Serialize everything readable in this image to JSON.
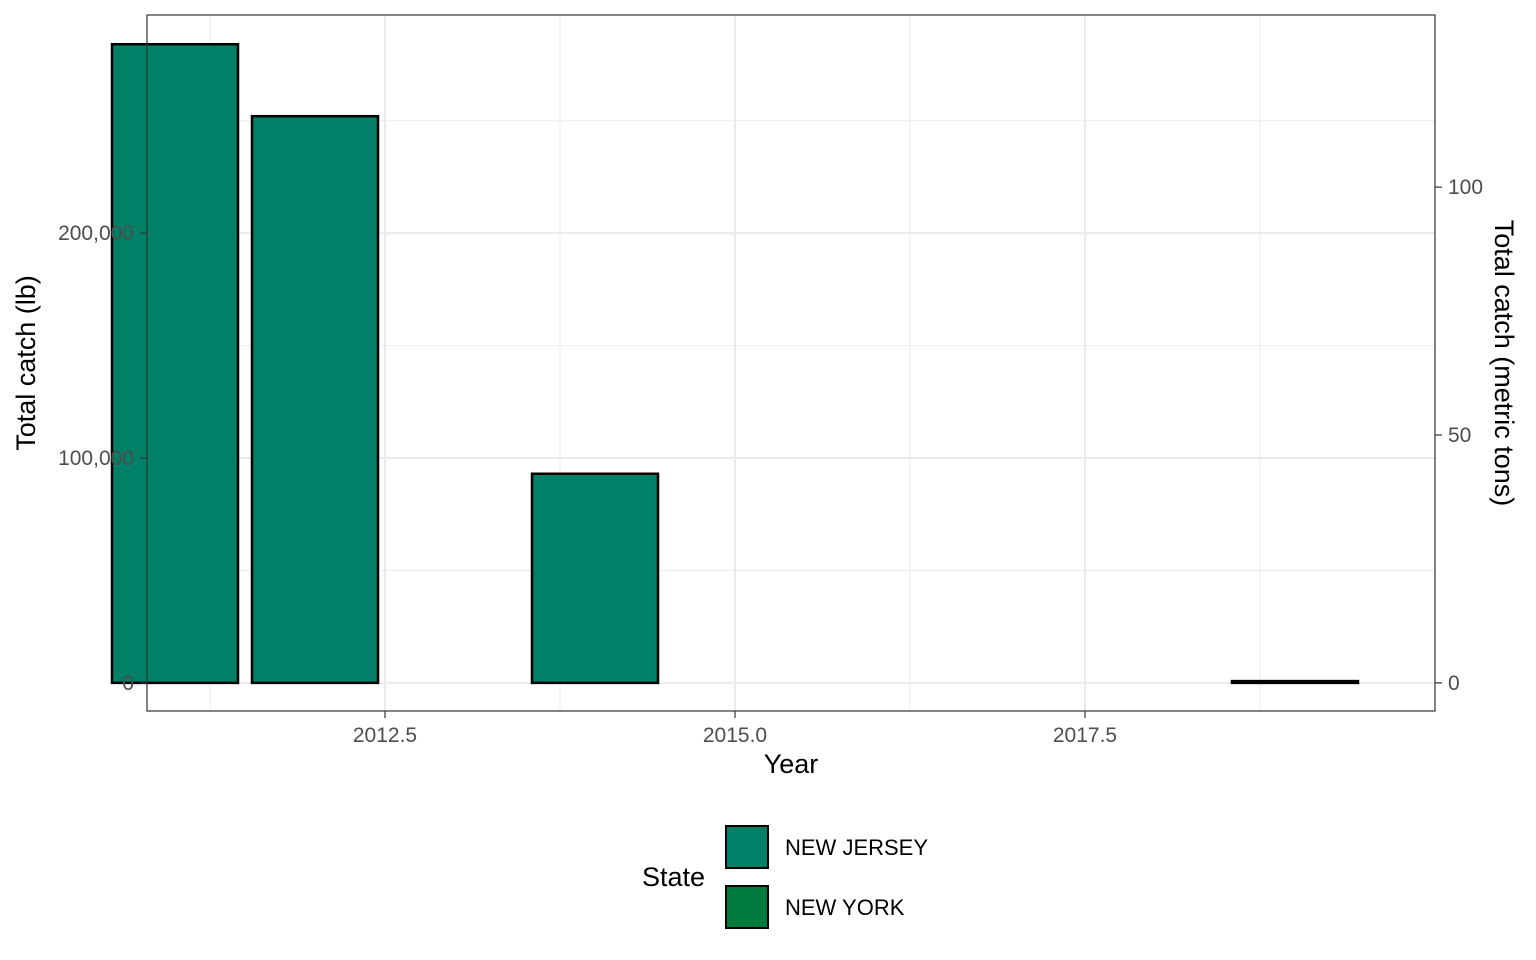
{
  "chart_data": {
    "type": "bar",
    "xlabel": "Year",
    "ylabel": "Total catch (lb)",
    "ylabel_secondary": "Total catch (metric tons)",
    "xlim": [
      2010.8,
      2020.0
    ],
    "ylim": [
      -12500,
      297000
    ],
    "x_ticks": [
      2012.5,
      2015.0,
      2017.5
    ],
    "x_tick_labels": [
      "2012.5",
      "2015.0",
      "2017.5"
    ],
    "y_ticks": [
      0,
      100000,
      200000
    ],
    "y_tick_labels": [
      "0",
      "100,000",
      "200,000"
    ],
    "y2_ticks": [
      0,
      50,
      100
    ],
    "y2_tick_labels": [
      "0",
      "50",
      "100"
    ],
    "grid": true,
    "legend_position": "bottom",
    "legend_title": "State",
    "bar_width": 0.9,
    "series": [
      {
        "name": "NEW JERSEY",
        "color": "#008066",
        "points": [
          {
            "x": 2011,
            "y": 284000
          },
          {
            "x": 2012,
            "y": 252000
          },
          {
            "x": 2014,
            "y": 93000
          }
        ]
      },
      {
        "name": "NEW YORK",
        "color": "#007A3D",
        "points": [
          {
            "x": 2019,
            "y": 800
          }
        ]
      }
    ]
  }
}
